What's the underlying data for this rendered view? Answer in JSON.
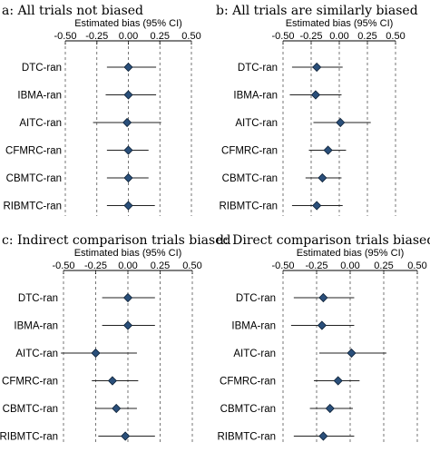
{
  "chart_data": [
    {
      "type": "forest",
      "title": "a: All trials not biased",
      "xlabel": "Estimated bias (95% CI)",
      "xlim": [
        -0.5,
        0.5
      ],
      "xticks": [
        "-0.50",
        "-0.25",
        "0.00",
        "0.25",
        "0.50"
      ],
      "categories": [
        "DTC-ran",
        "IBMA-ran",
        "AITC-ran",
        "CFMRC-ran",
        "CBMTC-ran",
        "RIBMTC-ran"
      ],
      "estimates": [
        0.0,
        0.0,
        -0.01,
        0.0,
        0.0,
        0.0
      ],
      "ci_lower": [
        -0.17,
        -0.18,
        -0.28,
        -0.17,
        -0.17,
        -0.17
      ],
      "ci_upper": [
        0.22,
        0.22,
        0.26,
        0.16,
        0.16,
        0.21
      ],
      "grid": "vertical dashed",
      "marker_color": "#2a4f7a"
    },
    {
      "type": "forest",
      "title": "b: All trials are similarly biased",
      "xlabel": "Estimated bias (95% CI)",
      "xlim": [
        -0.5,
        0.5
      ],
      "xticks": [
        "-0.50",
        "-0.25",
        "0.00",
        "0.25",
        "0.50"
      ],
      "categories": [
        "DTC-ran",
        "IBMA-ran",
        "AITC-ran",
        "CFMRC-ran",
        "CBMTC-ran",
        "RIBMTC-ran"
      ],
      "estimates": [
        -0.2,
        -0.21,
        0.01,
        -0.1,
        -0.15,
        -0.2
      ],
      "ci_lower": [
        -0.42,
        -0.44,
        -0.23,
        -0.27,
        -0.3,
        -0.42
      ],
      "ci_upper": [
        0.03,
        0.02,
        0.28,
        0.06,
        0.02,
        0.03
      ],
      "grid": "vertical dashed",
      "marker_color": "#2a4f7a"
    },
    {
      "type": "forest",
      "title": "c: Indirect comparison trials biased",
      "xlabel": "Estimated bias (95% CI)",
      "xlim": [
        -0.5,
        0.5
      ],
      "xticks": [
        "-0.50",
        "-0.25",
        "0.00",
        "0.25",
        "0.50"
      ],
      "categories": [
        "DTC-ran",
        "IBMA-ran",
        "AITC-ran",
        "CFMRC-ran",
        "CBMTC-ran",
        "RIBMTC-ran"
      ],
      "estimates": [
        0.0,
        0.0,
        -0.25,
        -0.12,
        -0.09,
        -0.02
      ],
      "ci_lower": [
        -0.2,
        -0.2,
        -0.52,
        -0.28,
        -0.25,
        -0.23
      ],
      "ci_upper": [
        0.21,
        0.21,
        0.07,
        0.08,
        0.07,
        0.21
      ],
      "grid": "vertical dashed",
      "marker_color": "#2a4f7a"
    },
    {
      "type": "forest",
      "title": "d: Direct comparison trials biased",
      "xlabel": "Estimated bias (95% CI)",
      "xlim": [
        -0.5,
        0.5
      ],
      "xticks": [
        "-0.50",
        "-0.25",
        "0.00",
        "0.25",
        "0.50"
      ],
      "categories": [
        "DTC-ran",
        "IBMA-ran",
        "AITC-ran",
        "CFMRC-ran",
        "CBMTC-ran",
        "RIBMTC-ran"
      ],
      "estimates": [
        -0.2,
        -0.21,
        0.01,
        -0.09,
        -0.15,
        -0.2
      ],
      "ci_lower": [
        -0.42,
        -0.44,
        -0.23,
        -0.27,
        -0.3,
        -0.42
      ],
      "ci_upper": [
        0.03,
        0.03,
        0.27,
        0.07,
        0.02,
        0.03
      ],
      "grid": "vertical dashed",
      "marker_color": "#2a4f7a"
    }
  ]
}
